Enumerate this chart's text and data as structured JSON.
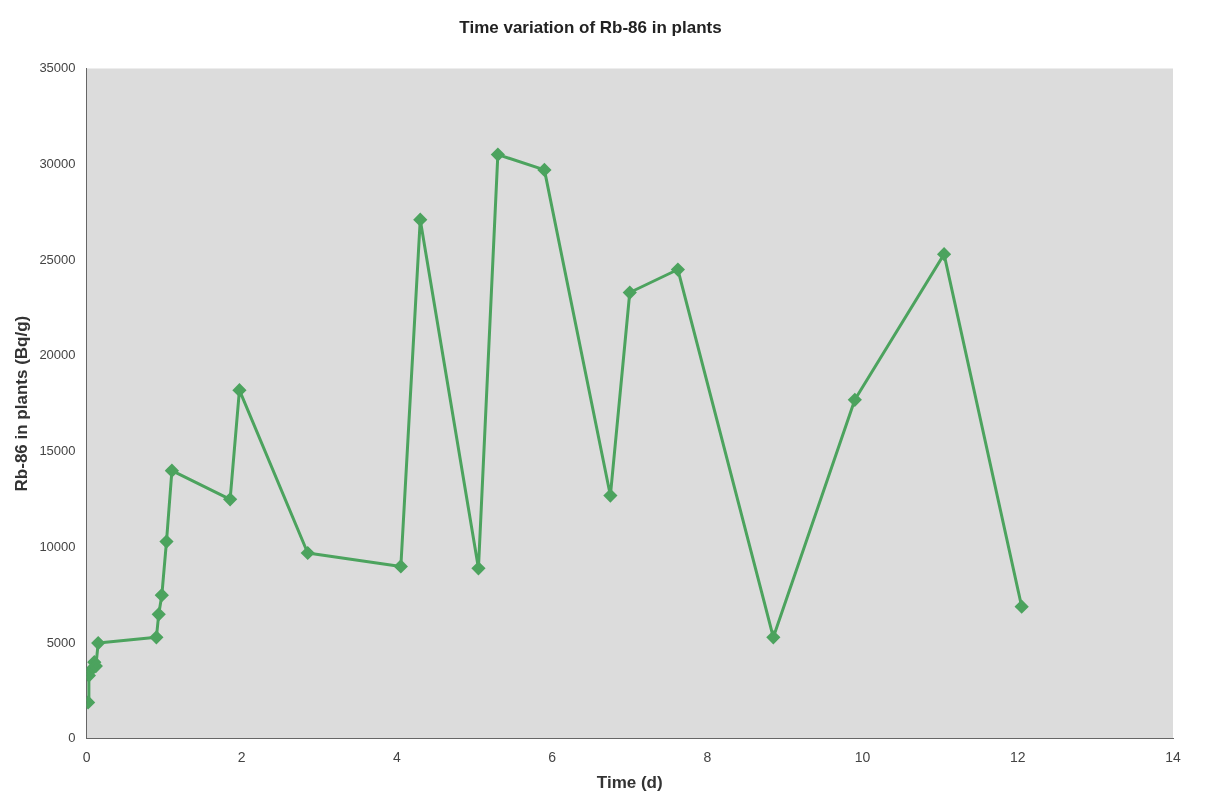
{
  "chart_data": {
    "type": "line",
    "title": "Time variation of Rb-86 in plants",
    "xlabel": "Time (d)",
    "ylabel": "Rb-86 in plants (Bq/g)",
    "x": [
      0.02,
      0.03,
      0.06,
      0.1,
      0.12,
      0.15,
      0.9,
      0.93,
      0.97,
      1.03,
      1.1,
      1.85,
      1.97,
      2.85,
      4.05,
      4.3,
      5.05,
      5.3,
      5.9,
      6.75,
      7.0,
      7.62,
      8.85,
      9.9,
      11.05,
      12.05
    ],
    "series": [
      {
        "color": "#4ca35e",
        "values": [
          1900,
          3300,
          3600,
          4000,
          3800,
          5000,
          5300,
          6500,
          7500,
          10300,
          14000,
          12500,
          18200,
          9700,
          9000,
          27100,
          8900,
          30500,
          29700,
          12700,
          23300,
          24500,
          5300,
          17700,
          25300,
          6900
        ]
      }
    ],
    "xlim": [
      0,
      14
    ],
    "xticks": [
      0,
      2,
      4,
      6,
      8,
      10,
      12,
      14
    ],
    "ylim": [
      0,
      35000
    ],
    "yticks": [
      0,
      5000,
      10000,
      15000,
      20000,
      25000,
      30000,
      35000
    ],
    "marker": "diamond",
    "line_style": "solid",
    "grid": false,
    "legend": false
  }
}
